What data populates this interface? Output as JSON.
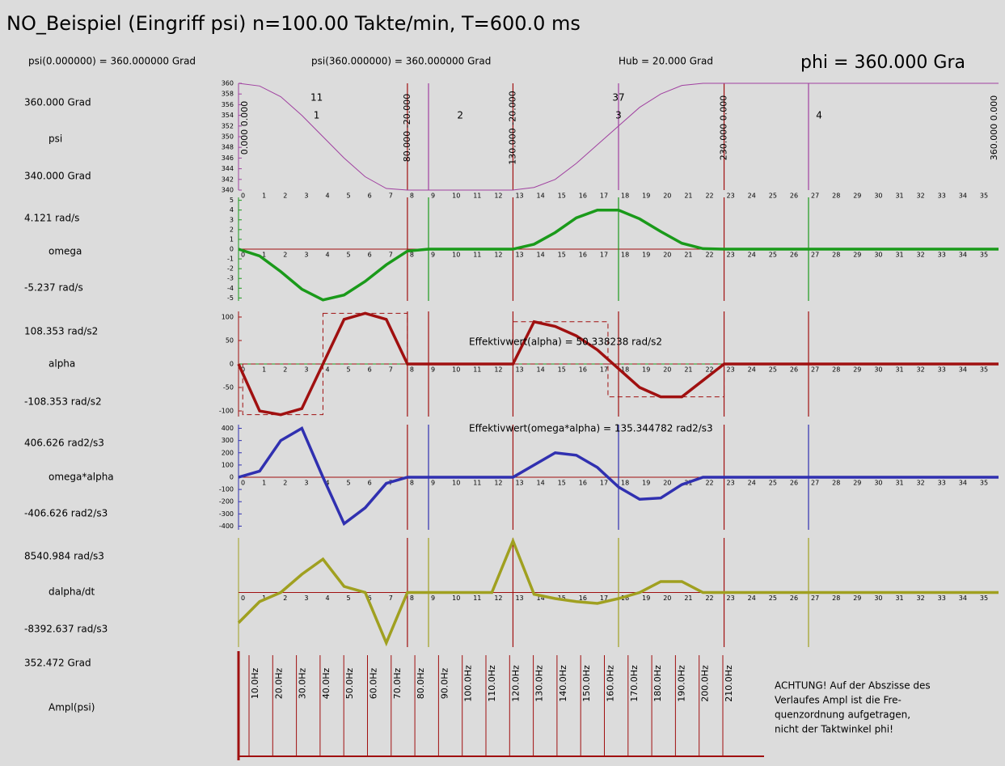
{
  "title": "NO_Beispiel (Eingriff psi)  n=100.00 Takte/min, T=600.0 ms",
  "info": [
    "psi(0.000000) = 360.000000 Grad",
    "psi(360.000000) = 360.000000 Grad",
    "Hub = 20.000 Grad",
    "phi =  360.000 Gra"
  ],
  "chart_data": [
    {
      "type": "line",
      "name": "psi",
      "max_label": "360.000 Grad",
      "min_label": "340.000 Grad",
      "xlim": [
        0,
        36
      ],
      "xticks": [
        0,
        1,
        2,
        3,
        4,
        5,
        6,
        7,
        8,
        9,
        10,
        11,
        12,
        13,
        14,
        15,
        16,
        17,
        18,
        19,
        20,
        21,
        22,
        23,
        24,
        25,
        26,
        27,
        28,
        29,
        30,
        31,
        32,
        33,
        34,
        35
      ],
      "ylim": [
        340,
        360
      ],
      "yticks": [
        340,
        342,
        344,
        346,
        348,
        350,
        352,
        354,
        356,
        358,
        360
      ],
      "annotations": [
        "0.000 0.000",
        "80.000 -20.000",
        "130.000 -20.000",
        "230.000 0.000",
        "360.000 0.000",
        "1",
        "2",
        "3",
        "4",
        "11",
        "37"
      ],
      "x": [
        0,
        1,
        2,
        3,
        4,
        5,
        6,
        7,
        8,
        9,
        10,
        11,
        12,
        13,
        14,
        15,
        16,
        17,
        18,
        19,
        20,
        21,
        22,
        23,
        24,
        25,
        26,
        27,
        28,
        29,
        30,
        31,
        32,
        33,
        34,
        35,
        36
      ],
      "series": [
        {
          "color": "#a040a0",
          "values": [
            360,
            359.5,
            357.5,
            354,
            350,
            346,
            342.5,
            340.3,
            340,
            340,
            340,
            340,
            340,
            340,
            340.5,
            342,
            345,
            348.5,
            352,
            355.5,
            358,
            359.6,
            360,
            360,
            360,
            360,
            360,
            360,
            360,
            360,
            360,
            360,
            360,
            360,
            360,
            360,
            360
          ]
        }
      ]
    },
    {
      "type": "line",
      "name": "omega",
      "max_label": "4.121 rad/s",
      "min_label": "-5.237 rad/s",
      "ylim": [
        -5.3,
        5.3
      ],
      "yticks": [
        -5,
        -4,
        -3,
        -2,
        -1,
        0,
        1,
        2,
        3,
        4,
        5
      ],
      "x": [
        0,
        1,
        2,
        3,
        4,
        5,
        6,
        7,
        8,
        9,
        10,
        11,
        12,
        13,
        14,
        15,
        16,
        17,
        18,
        19,
        20,
        21,
        22,
        23,
        24,
        25,
        26,
        27,
        28,
        29,
        30,
        31,
        32,
        33,
        34,
        35,
        36
      ],
      "series": [
        {
          "color": "#1a9a1a",
          "values": [
            0,
            -0.7,
            -2.3,
            -4.1,
            -5.2,
            -4.7,
            -3.3,
            -1.6,
            -0.2,
            0,
            0,
            0,
            0,
            0,
            0.5,
            1.7,
            3.2,
            4,
            4,
            3.1,
            1.8,
            0.6,
            0.05,
            0,
            0,
            0,
            0,
            0,
            0,
            0,
            0,
            0,
            0,
            0,
            0,
            0,
            0
          ]
        }
      ]
    },
    {
      "type": "line",
      "name": "alpha",
      "max_label": "108.353 rad/s2",
      "min_label": "-108.353 rad/s2",
      "ylim": [
        -112,
        112
      ],
      "yticks": [
        -100,
        -50,
        0,
        50,
        100
      ],
      "annotations": [
        "Effektivwert(alpha) = 50.338238 rad/s2"
      ],
      "x": [
        0,
        1,
        2,
        3,
        4,
        5,
        6,
        7,
        8,
        9,
        10,
        11,
        12,
        13,
        14,
        15,
        16,
        17,
        18,
        19,
        20,
        21,
        22,
        23,
        24,
        25,
        26,
        27,
        28,
        29,
        30,
        31,
        32,
        33,
        34,
        35,
        36
      ],
      "series": [
        {
          "color": "#a01010",
          "values": [
            0,
            -100,
            -108,
            -95,
            0,
            95,
            108,
            95,
            0,
            0,
            0,
            0,
            0,
            0,
            90,
            80,
            60,
            30,
            -10,
            -50,
            -70,
            -70,
            -35,
            0,
            0,
            0,
            0,
            0,
            0,
            0,
            0,
            0,
            0,
            0,
            0,
            0,
            0
          ]
        }
      ]
    },
    {
      "type": "line",
      "name": "omega*alpha",
      "max_label": "406.626 rad2/s3",
      "min_label": "-406.626 rad2/s3",
      "ylim": [
        -430,
        430
      ],
      "yticks": [
        -400,
        -300,
        -200,
        -100,
        0,
        100,
        200,
        300,
        400
      ],
      "annotations": [
        "Effektivwert(omega*alpha) = 135.344782 rad2/s3"
      ],
      "x": [
        0,
        1,
        2,
        3,
        4,
        5,
        6,
        7,
        8,
        9,
        10,
        11,
        12,
        13,
        14,
        15,
        16,
        17,
        18,
        19,
        20,
        21,
        22,
        23,
        24,
        25,
        26,
        27,
        28,
        29,
        30,
        31,
        32,
        33,
        34,
        35,
        36
      ],
      "series": [
        {
          "color": "#3030b0",
          "values": [
            0,
            50,
            300,
            400,
            0,
            -380,
            -250,
            -50,
            0,
            0,
            0,
            0,
            0,
            0,
            100,
            200,
            180,
            80,
            -80,
            -180,
            -170,
            -60,
            0,
            0,
            0,
            0,
            0,
            0,
            0,
            0,
            0,
            0,
            0,
            0,
            0,
            0,
            0
          ]
        }
      ]
    },
    {
      "type": "line",
      "name": "dalpha/dt",
      "max_label": "8540.984 rad/s3",
      "min_label": "-8392.637 rad/s3",
      "ylim": [
        -9000,
        9000
      ],
      "x": [
        0,
        1,
        2,
        3,
        4,
        5,
        6,
        7,
        8,
        9,
        10,
        11,
        12,
        13,
        14,
        15,
        16,
        17,
        18,
        19,
        20,
        21,
        22,
        23,
        24,
        25,
        26,
        27,
        28,
        29,
        30,
        31,
        32,
        33,
        34,
        35,
        36
      ],
      "series": [
        {
          "color": "#a0a020",
          "values": [
            -5000,
            -1500,
            0,
            3000,
            5500,
            1000,
            0,
            -8300,
            0,
            0,
            0,
            0,
            0,
            8500,
            -300,
            -1000,
            -1500,
            -1800,
            -1000,
            0,
            1800,
            1800,
            0,
            0,
            0,
            0,
            0,
            0,
            0,
            0,
            0,
            0,
            0,
            0,
            0,
            0,
            0
          ]
        }
      ]
    },
    {
      "type": "spectrum",
      "name": "Ampl(psi)",
      "max_label": "352.472 Grad",
      "categories": [
        "10.0Hz",
        "20.0Hz",
        "30.0Hz",
        "40.0Hz",
        "50.0Hz",
        "60.0Hz",
        "70.0Hz",
        "80.0Hz",
        "90.0Hz",
        "100.0Hz",
        "110.0Hz",
        "120.0Hz",
        "130.0Hz",
        "140.0Hz",
        "150.0Hz",
        "160.0Hz",
        "170.0Hz",
        "180.0Hz",
        "190.0Hz",
        "200.0Hz",
        "210.0Hz"
      ],
      "note": [
        "ACHTUNG! Auf der Abszisse des",
        "Verlaufes Ampl ist die Fre-",
        "quenzordnung aufgetragen,",
        "nicht der Taktwinkel phi!"
      ]
    }
  ]
}
